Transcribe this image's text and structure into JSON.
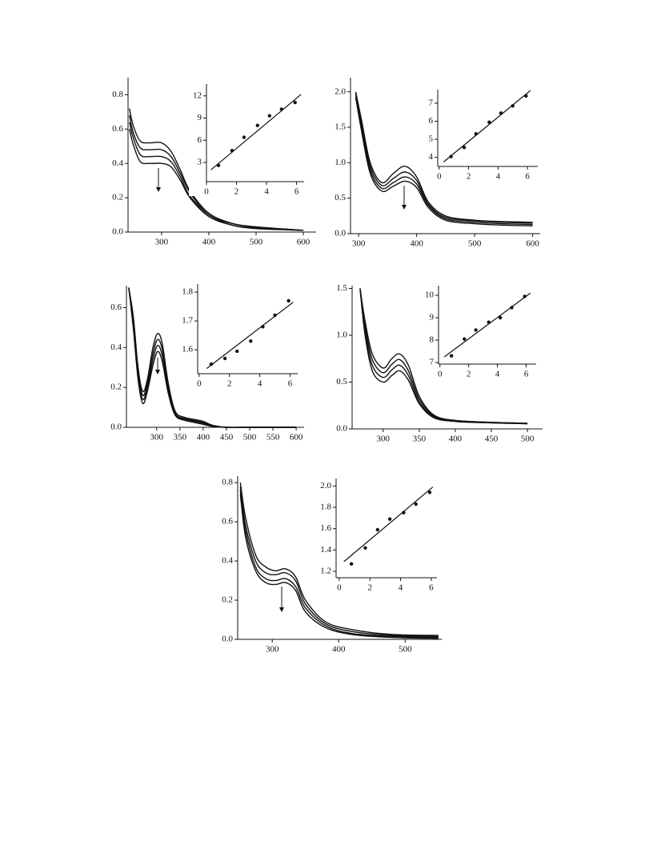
{
  "chart_data": [
    {
      "type": "line",
      "x": [
        232,
        240,
        255,
        275,
        300,
        320,
        340,
        360,
        400,
        450,
        500,
        600
      ],
      "series": [
        {
          "color": "#111111",
          "values": [
            0.72,
            0.62,
            0.53,
            0.52,
            0.52,
            0.47,
            0.36,
            0.24,
            0.11,
            0.05,
            0.03,
            0.01
          ]
        },
        {
          "color": "#111111",
          "values": [
            0.68,
            0.58,
            0.49,
            0.48,
            0.48,
            0.44,
            0.34,
            0.23,
            0.1,
            0.05,
            0.03,
            0.01
          ]
        },
        {
          "color": "#111111",
          "values": [
            0.64,
            0.55,
            0.45,
            0.44,
            0.44,
            0.41,
            0.32,
            0.21,
            0.1,
            0.04,
            0.025,
            0.01
          ]
        },
        {
          "color": "#111111",
          "values": [
            0.6,
            0.51,
            0.41,
            0.4,
            0.4,
            0.38,
            0.3,
            0.2,
            0.09,
            0.04,
            0.02,
            0.01
          ]
        }
      ],
      "xlim": [
        229,
        627
      ],
      "ylim": [
        0,
        0.9
      ],
      "xticks": [
        300,
        400,
        500,
        600
      ],
      "yticks": [
        {
          "value": 0,
          "label": "0.0"
        },
        0.2,
        0.4,
        0.6,
        0.8
      ],
      "inset": {
        "type": "scatter",
        "x": [
          0.8,
          1.7,
          2.5,
          3.4,
          4.2,
          5,
          5.9
        ],
        "values": [
          2.6,
          4.6,
          6.4,
          8,
          9.3,
          10.2,
          11.1
        ],
        "fit": {
          "x": [
            0.3,
            6.3
          ],
          "values": [
            2,
            12.2
          ]
        },
        "xlim": [
          0,
          6.5
        ],
        "ylim": [
          0.4,
          13.6
        ],
        "xticks": [
          0,
          2,
          4,
          6
        ],
        "yticks": [
          3,
          6,
          9,
          12
        ]
      }
    },
    {
      "type": "line",
      "x": [
        295,
        305,
        320,
        340,
        360,
        380,
        400,
        420,
        450,
        500,
        550,
        600
      ],
      "series": [
        {
          "color": "#111111",
          "values": [
            2.0,
            1.6,
            1.0,
            0.72,
            0.85,
            0.95,
            0.8,
            0.45,
            0.25,
            0.19,
            0.17,
            0.16
          ]
        },
        {
          "color": "#111111",
          "values": [
            1.98,
            1.55,
            0.95,
            0.68,
            0.78,
            0.87,
            0.75,
            0.42,
            0.23,
            0.18,
            0.16,
            0.15
          ]
        },
        {
          "color": "#111111",
          "values": [
            1.95,
            1.5,
            0.9,
            0.64,
            0.72,
            0.8,
            0.7,
            0.4,
            0.21,
            0.16,
            0.14,
            0.13
          ]
        },
        {
          "color": "#111111",
          "values": [
            1.92,
            1.45,
            0.85,
            0.6,
            0.67,
            0.74,
            0.65,
            0.37,
            0.19,
            0.14,
            0.12,
            0.11
          ]
        }
      ],
      "xlim": [
        286,
        613
      ],
      "ylim": [
        0,
        2.2
      ],
      "xticks": [
        300,
        400,
        500,
        600
      ],
      "yticks": [
        {
          "value": 0,
          "label": "0.0"
        },
        0.5,
        {
          "value": 1,
          "label": "1.0"
        },
        1.5,
        {
          "value": 2,
          "label": "2.0"
        }
      ],
      "inset": {
        "type": "scatter",
        "x": [
          0.8,
          1.7,
          2.5,
          3.4,
          4.2,
          5,
          5.9
        ],
        "values": [
          4.05,
          4.55,
          5.3,
          5.95,
          6.45,
          6.85,
          7.4
        ],
        "fit": {
          "x": [
            0.3,
            6.2
          ],
          "values": [
            3.75,
            7.7
          ]
        },
        "xlim": [
          -0.1,
          6.7
        ],
        "ylim": [
          3.5,
          7.75
        ],
        "xticks": [
          0,
          2,
          4,
          6
        ],
        "yticks": [
          4,
          5,
          6,
          7
        ]
      }
    },
    {
      "type": "line",
      "x": [
        240,
        250,
        260,
        270,
        280,
        292,
        302,
        312,
        325,
        340,
        360,
        380,
        400,
        420,
        450,
        500,
        600
      ],
      "series": [
        {
          "color": "#111111",
          "values": [
            0.7,
            0.55,
            0.3,
            0.18,
            0.24,
            0.4,
            0.47,
            0.42,
            0.22,
            0.08,
            0.05,
            0.04,
            0.03,
            0.01,
            0,
            0,
            0
          ]
        },
        {
          "color": "#111111",
          "values": [
            0.7,
            0.53,
            0.28,
            0.16,
            0.22,
            0.37,
            0.44,
            0.39,
            0.2,
            0.07,
            0.045,
            0.035,
            0.025,
            0.01,
            0,
            0,
            0
          ]
        },
        {
          "color": "#111111",
          "values": [
            0.7,
            0.51,
            0.26,
            0.14,
            0.2,
            0.34,
            0.41,
            0.36,
            0.19,
            0.065,
            0.04,
            0.03,
            0.02,
            0.008,
            0,
            0,
            0
          ]
        },
        {
          "color": "#111111",
          "values": [
            0.7,
            0.49,
            0.24,
            0.12,
            0.18,
            0.31,
            0.38,
            0.33,
            0.17,
            0.06,
            0.035,
            0.025,
            0.015,
            0.005,
            0,
            0,
            0
          ]
        }
      ],
      "xlim": [
        235,
        617
      ],
      "ylim": [
        0,
        0.71
      ],
      "xticks": [
        300,
        350,
        400,
        450,
        500,
        550,
        600
      ],
      "yticks": [
        {
          "value": 0,
          "label": "0.0"
        },
        0.2,
        0.4,
        0.6
      ],
      "inset": {
        "type": "scatter",
        "x": [
          0.8,
          1.7,
          2.5,
          3.4,
          4.2,
          5,
          5.9
        ],
        "values": [
          1.55,
          1.57,
          1.595,
          1.63,
          1.68,
          1.72,
          1.77
        ],
        "fit": {
          "x": [
            0.5,
            6.2
          ],
          "values": [
            1.535,
            1.765
          ]
        },
        "xlim": [
          -0.1,
          6.5
        ],
        "ylim": [
          1.517,
          1.828
        ],
        "xticks": [
          0,
          2,
          4,
          6
        ],
        "yticks": [
          1.6,
          1.7,
          1.8
        ]
      }
    },
    {
      "type": "line",
      "x": [
        268,
        275,
        285,
        300,
        312,
        323,
        335,
        350,
        370,
        400,
        450,
        500
      ],
      "series": [
        {
          "color": "#111111",
          "values": [
            1.5,
            1.15,
            0.8,
            0.65,
            0.75,
            0.8,
            0.68,
            0.35,
            0.15,
            0.09,
            0.07,
            0.06
          ]
        },
        {
          "color": "#111111",
          "values": [
            1.5,
            1.1,
            0.74,
            0.6,
            0.69,
            0.74,
            0.62,
            0.32,
            0.14,
            0.09,
            0.07,
            0.06
          ]
        },
        {
          "color": "#111111",
          "values": [
            1.5,
            1.05,
            0.68,
            0.55,
            0.63,
            0.68,
            0.57,
            0.29,
            0.13,
            0.08,
            0.065,
            0.055
          ]
        },
        {
          "color": "#111111",
          "values": [
            1.5,
            1.0,
            0.62,
            0.5,
            0.57,
            0.62,
            0.52,
            0.27,
            0.12,
            0.08,
            0.065,
            0.055
          ]
        }
      ],
      "xlim": [
        257,
        521
      ],
      "ylim": [
        0,
        1.53
      ],
      "xticks": [
        300,
        350,
        400,
        450,
        500
      ],
      "yticks": [
        {
          "value": 0,
          "label": "0.0"
        },
        0.5,
        {
          "value": 1,
          "label": "1.0"
        },
        1.5
      ],
      "inset": {
        "type": "scatter",
        "x": [
          0.8,
          1.7,
          2.5,
          3.4,
          4.2,
          5,
          5.9
        ],
        "values": [
          7.3,
          8.05,
          8.45,
          8.8,
          9,
          9.45,
          9.95
        ],
        "fit": {
          "x": [
            0.3,
            6.3
          ],
          "values": [
            7.25,
            10.1
          ]
        },
        "xlim": [
          -0.1,
          6.7
        ],
        "ylim": [
          6.93,
          10.43
        ],
        "xticks": [
          0,
          2,
          4,
          6
        ],
        "yticks": [
          7,
          8,
          9,
          10
        ]
      }
    },
    {
      "type": "line",
      "x": [
        252,
        260,
        275,
        290,
        305,
        320,
        335,
        350,
        380,
        420,
        480,
        550
      ],
      "series": [
        {
          "color": "#111111",
          "values": [
            0.8,
            0.62,
            0.43,
            0.37,
            0.35,
            0.36,
            0.32,
            0.2,
            0.09,
            0.05,
            0.025,
            0.02
          ]
        },
        {
          "color": "#111111",
          "values": [
            0.78,
            0.58,
            0.4,
            0.34,
            0.33,
            0.34,
            0.3,
            0.18,
            0.08,
            0.04,
            0.02,
            0.015
          ]
        },
        {
          "color": "#111111",
          "values": [
            0.76,
            0.55,
            0.37,
            0.31,
            0.3,
            0.31,
            0.27,
            0.16,
            0.07,
            0.03,
            0.015,
            0.01
          ]
        },
        {
          "color": "#111111",
          "values": [
            0.74,
            0.52,
            0.35,
            0.29,
            0.28,
            0.29,
            0.25,
            0.14,
            0.06,
            0.025,
            0.01,
            0.005
          ]
        }
      ],
      "xlim": [
        248,
        555
      ],
      "ylim": [
        0,
        0.833
      ],
      "xticks": [
        300,
        400,
        500
      ],
      "yticks": [
        {
          "value": 0,
          "label": "0.0"
        },
        0.2,
        0.4,
        0.6,
        0.8
      ],
      "inset": {
        "type": "scatter",
        "x": [
          0.8,
          1.7,
          2.5,
          3.3,
          4.2,
          5,
          5.9
        ],
        "values": [
          1.27,
          1.42,
          1.59,
          1.69,
          1.75,
          1.83,
          1.94
        ],
        "fit": {
          "x": [
            0.3,
            6.1
          ],
          "values": [
            1.29,
            1.99
          ]
        },
        "xlim": [
          -0.2,
          6.37
        ],
        "ylim": [
          1.14,
          2.07
        ],
        "xticks": [
          0,
          2,
          4,
          6
        ],
        "yticks": [
          1.2,
          1.4,
          1.6,
          {
            "value": 1.8,
            "label": "1.8"
          },
          {
            "value": 2,
            "label": "2.0"
          }
        ]
      }
    }
  ]
}
